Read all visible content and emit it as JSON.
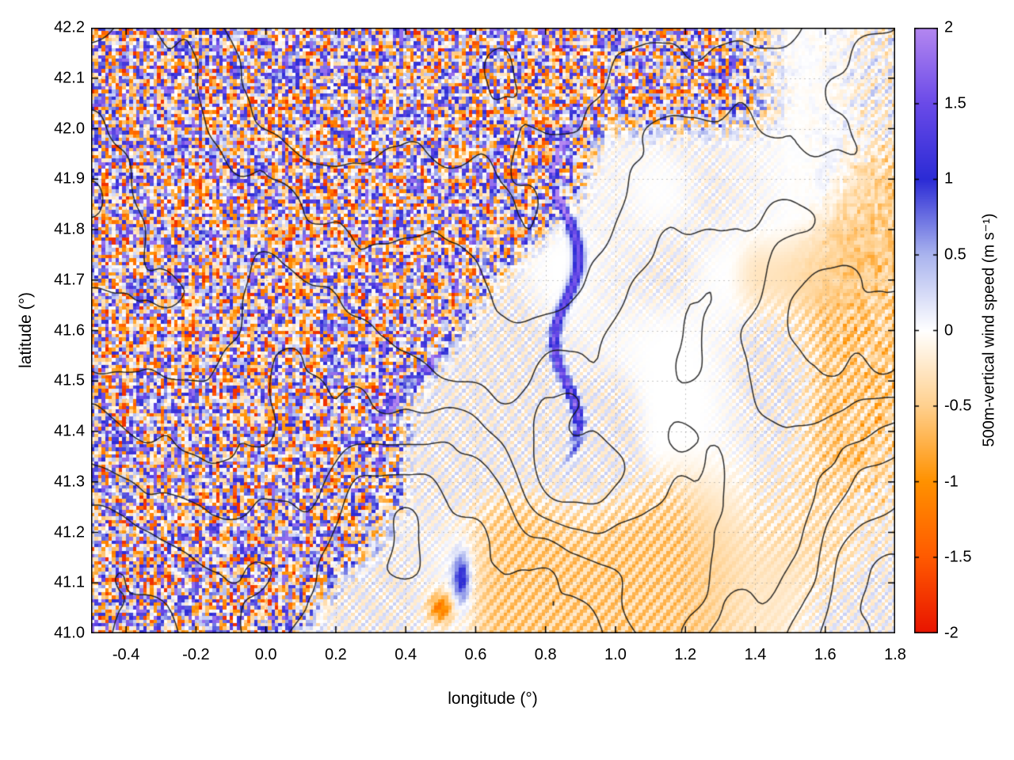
{
  "figure": {
    "background": "#ffffff"
  },
  "chart_data": {
    "type": "heatmap",
    "title": "",
    "xlabel": "longitude (°)",
    "ylabel": "latitude (°)",
    "x_range": [
      -0.5,
      1.8
    ],
    "y_range": [
      41.0,
      42.2
    ],
    "x_ticks": [
      -0.4,
      -0.2,
      0.0,
      0.2,
      0.4,
      0.6,
      0.8,
      1.0,
      1.2,
      1.4,
      1.6,
      1.8
    ],
    "x_tick_labels": [
      "-0.4",
      "-0.2",
      "0.0",
      "0.2",
      "0.4",
      "0.6",
      "0.8",
      "1.0",
      "1.2",
      "1.4",
      "1.6",
      "1.8"
    ],
    "y_ticks": [
      41.0,
      41.1,
      41.2,
      41.3,
      41.4,
      41.5,
      41.6,
      41.7,
      41.8,
      41.9,
      42.0,
      42.1,
      42.2
    ],
    "y_tick_labels": [
      "41.0",
      "41.1",
      "41.2",
      "41.3",
      "41.4",
      "41.5",
      "41.6",
      "41.7",
      "41.8",
      "41.9",
      "42.0",
      "42.1",
      "42.2"
    ],
    "grid": true,
    "colorbar": {
      "label": "500m-vertical wind speed (m s⁻¹)",
      "range": [
        -2,
        2
      ],
      "ticks": [
        -2,
        -1.5,
        -1,
        -0.5,
        0,
        0.5,
        1,
        1.5,
        2
      ],
      "tick_labels": [
        "-2",
        "-1.5",
        "-1",
        "-0.5",
        "0",
        "0.5",
        "1",
        "1.5",
        "2"
      ],
      "palette": [
        {
          "value": -2.0,
          "color": "#e81400"
        },
        {
          "value": -1.5,
          "color": "#ff5a00"
        },
        {
          "value": -1.0,
          "color": "#ff9100"
        },
        {
          "value": -0.5,
          "color": "#ffd08e"
        },
        {
          "value": 0.0,
          "color": "#ffffff"
        },
        {
          "value": 0.5,
          "color": "#aab4ee"
        },
        {
          "value": 1.0,
          "color": "#2b2bd5"
        },
        {
          "value": 1.5,
          "color": "#6a4ae8"
        },
        {
          "value": 2.0,
          "color": "#b487f0"
        }
      ]
    },
    "overlay": {
      "type": "contour",
      "color": "#1a1a1a",
      "description": "black terrain-elevation contour lines, dense over the northern mountains, with closed loops over isolated hills in the south-east"
    },
    "field_summary": {
      "units": "m s⁻¹",
      "description": "Map of 500 m vertical wind speed over NE Spain (lon −0.5°…1.8°, lat 41.0°…42.2°). Strongly turbulent speckled updraft/downdraft pattern (values saturating near ±1.5–2) covers the north-western mountainous half above a SW–NE diagonal boundary; the south-eastern lowlands are quasi-laminar (|w| < 0.5) with fine slanted gravity-wave streaks and broad weak-downdraft (tan) patches; a narrow strong updraft filament (w ≈ 1.5–2) runs near lon 0.85° from lat 41.4° to 42.0°; mild blue mottling along the eastern edge.",
      "regions": [
        {
          "area": "northwest and north (mountains)",
          "pattern": "high-amplitude turbulent speckle, alternating updrafts and downdrafts",
          "value_range": [
            -2,
            2
          ]
        },
        {
          "area": "southeast lowlands",
          "pattern": "weak banded gravity-wave streaks oriented SW–NE",
          "value_range": [
            -0.5,
            0.5
          ]
        },
        {
          "area": "lon ≈ 0.85°, lat 41.4°–42.0°",
          "pattern": "narrow strong updraft filament",
          "value_range": [
            1,
            2
          ]
        },
        {
          "area": "eastern edge lon > 1.45°",
          "pattern": "mild blue/orange mottling and wave arcs",
          "value_range": [
            -0.6,
            0.8
          ]
        }
      ]
    }
  }
}
